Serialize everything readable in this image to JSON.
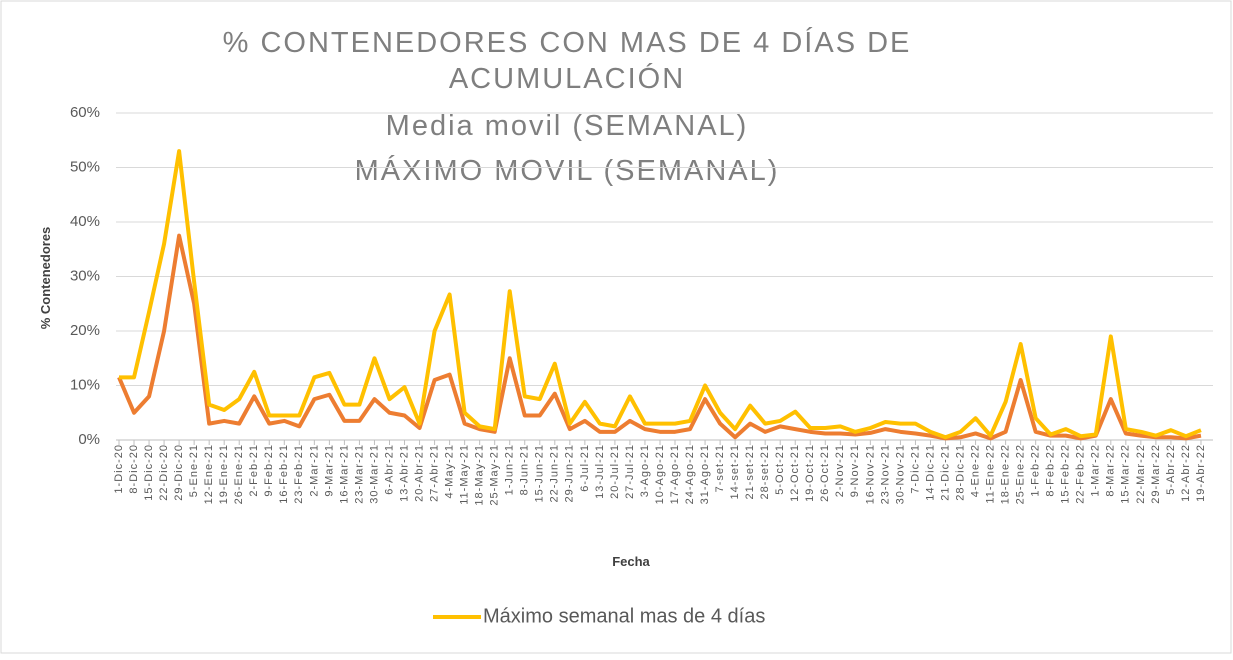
{
  "chart_data": {
    "type": "line",
    "title": [
      "% CONTENEDORES CON MAS DE 4 DÍAS DE",
      "ACUMULACIÓN",
      "Media movil (SEMANAL)",
      "MÁXIMO MOVIL (SEMANAL)"
    ],
    "x_label": "Fecha",
    "y_label": "% Contenedores",
    "categories": [
      "1-Dic-20",
      "8-Dic-20",
      "15-Dic-20",
      "22-Dic-20",
      "29-Dic-20",
      "5-Ene-21",
      "12-Ene-21",
      "19-Ene-21",
      "26-Ene-21",
      "2-Feb-21",
      "9-Feb-21",
      "16-Feb-21",
      "23-Feb-21",
      "2-Mar-21",
      "9-Mar-21",
      "16-Mar-21",
      "23-Mar-21",
      "30-Mar-21",
      "6-Abr-21",
      "13-Abr-21",
      "20-Abr-21",
      "27-Abr-21",
      "4-May-21",
      "11-May-21",
      "18-May-21",
      "25-May-21",
      "1-Jun-21",
      "8-Jun-21",
      "15-Jun-21",
      "22-Jun-21",
      "29-Jun-21",
      "6-Jul-21",
      "13-Jul-21",
      "20-Jul-21",
      "27-Jul-21",
      "3-Ago-21",
      "10-Ago-21",
      "17-Ago-21",
      "24-Ago-21",
      "31-Ago-21",
      "7-set-21",
      "14-set-21",
      "21-set-21",
      "28-set-21",
      "5-Oct-21",
      "12-Oct-21",
      "19-Oct-21",
      "26-Oct-21",
      "2-Nov-21",
      "9-Nov-21",
      "16-Nov-21",
      "23-Nov-21",
      "30-Nov-21",
      "7-Dic-21",
      "14-Dic-21",
      "21-Dic-21",
      "28-Dic-21",
      "4-Ene-22",
      "11-Ene-22",
      "18-Ene-22",
      "25-Ene-22",
      "1-Feb-22",
      "8-Feb-22",
      "15-Feb-22",
      "22-Feb-22",
      "1-Mar-22",
      "8-Mar-22",
      "15-Mar-22",
      "22-Mar-22",
      "29-Mar-22",
      "5-Abr-22",
      "12-Abr-22",
      "19-Abr-22"
    ],
    "series": [
      {
        "name": "Máximo semanal mas de 4 días",
        "color": "#ffc000",
        "values": [
          11.5,
          11.5,
          23.5,
          36,
          53,
          29,
          6.5,
          5.5,
          7.5,
          12.5,
          4.5,
          4.5,
          4.5,
          11.5,
          12.3,
          6.5,
          6.5,
          15,
          7.5,
          9.7,
          3,
          20,
          26.7,
          5,
          2.5,
          2,
          27.3,
          8,
          7.5,
          14,
          3,
          7,
          3,
          2.5,
          8,
          3,
          3,
          3,
          3.5,
          10,
          5,
          2,
          6.3,
          3,
          3.5,
          5.2,
          2.2,
          2.2,
          2.5,
          1.5,
          2.2,
          3.3,
          3,
          3,
          1.5,
          0.5,
          1.5,
          4,
          0.8,
          7,
          17.6,
          4,
          1,
          2,
          0.7,
          1,
          19,
          2,
          1.5,
          0.8,
          1.8,
          0.7,
          1.8
        ]
      },
      {
        "color": "#ed7d31",
        "values": [
          11.5,
          5,
          8,
          20,
          37.5,
          25,
          3,
          3.5,
          3,
          8,
          3,
          3.5,
          2.5,
          7.5,
          8.3,
          3.5,
          3.5,
          7.5,
          5,
          4.5,
          2.2,
          11,
          12,
          3,
          2,
          1.5,
          15,
          4.5,
          4.5,
          8.5,
          2,
          3.5,
          1.5,
          1.5,
          3.5,
          2,
          1.5,
          1.5,
          2,
          7.5,
          3,
          0.5,
          3,
          1.5,
          2.5,
          2,
          1.5,
          1.2,
          1.2,
          1,
          1.3,
          2,
          1.5,
          1.2,
          0.8,
          0.3,
          0.5,
          1.2,
          0.3,
          1.5,
          11,
          1.5,
          0.8,
          0.8,
          0.3,
          0.8,
          7.5,
          1.2,
          0.8,
          0.5,
          0.5,
          0.3,
          0.8
        ]
      }
    ],
    "ylim": [
      0,
      60
    ],
    "yticks": [
      {
        "value": 0,
        "label": "0%"
      },
      {
        "value": 10,
        "label": "10%"
      },
      {
        "value": 20,
        "label": "20%"
      },
      {
        "value": 30,
        "label": "30%"
      },
      {
        "value": 40,
        "label": "40%"
      },
      {
        "value": 50,
        "label": "50%"
      },
      {
        "value": 60,
        "label": "60%"
      }
    ],
    "grid": true
  }
}
